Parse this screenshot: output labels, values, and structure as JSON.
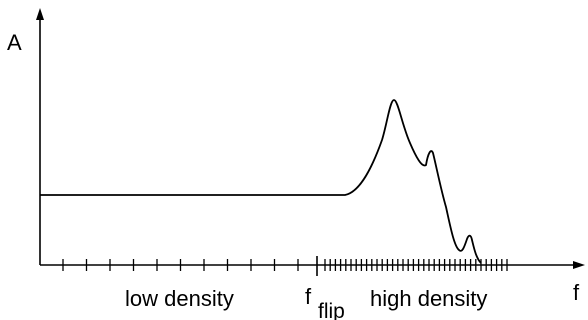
{
  "axes": {
    "y_label": "A",
    "x_label": "f"
  },
  "regions": {
    "low_label": "low density",
    "high_label": "high density"
  },
  "marker": {
    "symbol": "f",
    "subscript": "flip"
  },
  "colors": {
    "stroke": "#000000",
    "background": "#ffffff"
  }
}
